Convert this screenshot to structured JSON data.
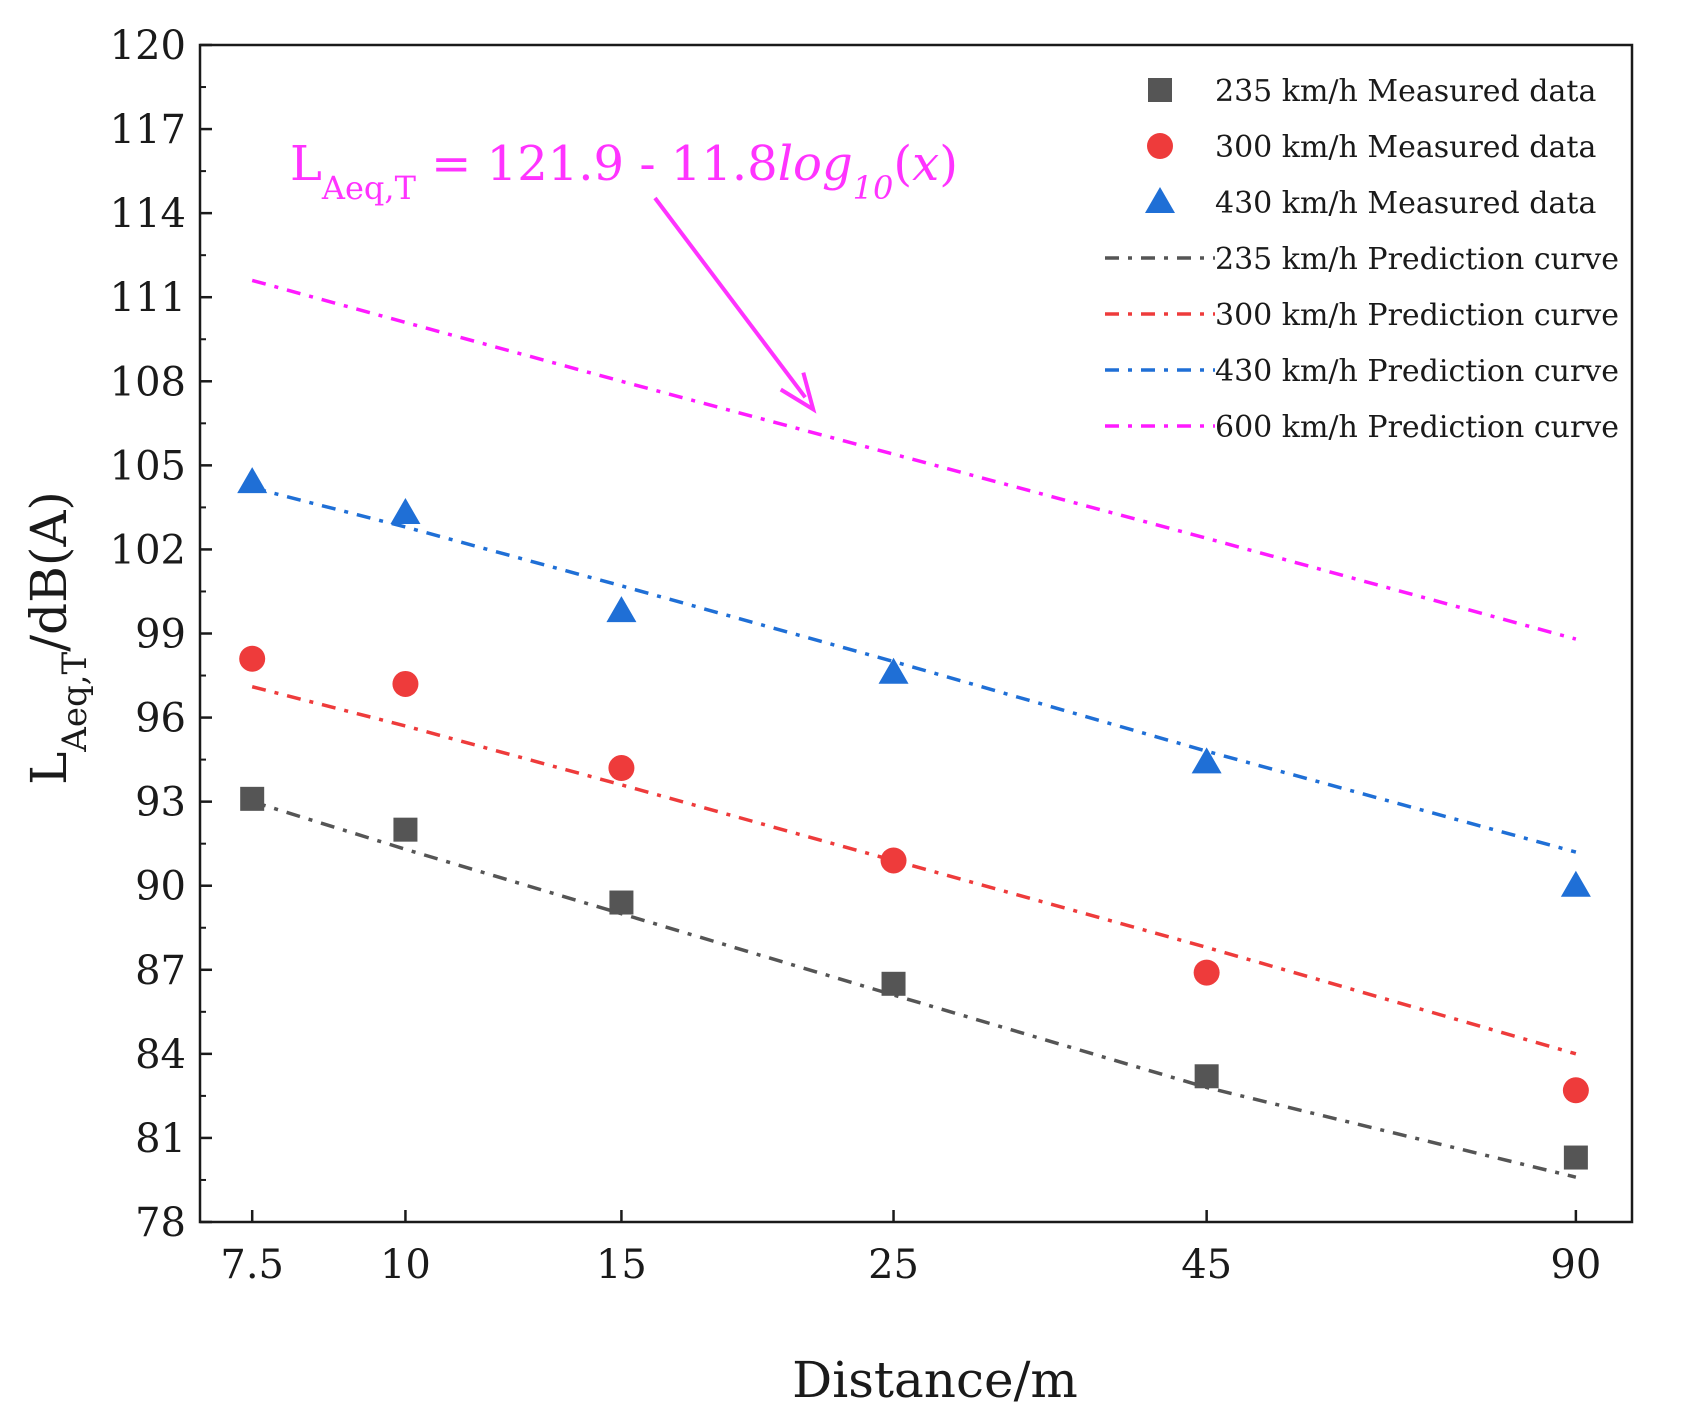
{
  "chart_data": {
    "type": "scatter",
    "title": "",
    "xlabel": "Distance/m",
    "ylabel": {
      "main": "L",
      "sub": "Aeq,T",
      "rest": "/dB(A)"
    },
    "x": [
      7.5,
      10,
      15,
      25,
      45,
      90
    ],
    "x_tick_labels": [
      "7.5",
      "10",
      "15",
      "25",
      "45",
      "90"
    ],
    "x_scale": "log",
    "xlim": [
      6.8,
      100
    ],
    "ylim": [
      78,
      120
    ],
    "y_ticks": [
      78,
      81,
      84,
      87,
      90,
      93,
      96,
      99,
      102,
      105,
      108,
      111,
      114,
      117,
      120
    ],
    "grid": false,
    "legend_position": "top-right",
    "series": [
      {
        "name": "235 km/h Measured data",
        "kind": "points",
        "marker": "square",
        "color": "#555555",
        "values": [
          93.1,
          92.0,
          89.4,
          86.5,
          83.2,
          80.3
        ]
      },
      {
        "name": "300 km/h Measured data",
        "kind": "points",
        "marker": "circle",
        "color": "#ee3b3b",
        "values": [
          98.1,
          97.2,
          94.2,
          90.9,
          86.9,
          82.7
        ]
      },
      {
        "name": "430 km/h Measured data",
        "kind": "points",
        "marker": "triangle",
        "color": "#1f6fd6",
        "values": [
          104.4,
          103.3,
          99.8,
          97.6,
          94.4,
          90.0
        ]
      },
      {
        "name": "235 km/h Prediction curve",
        "kind": "line",
        "color": "#555555",
        "values": [
          93.0,
          91.3,
          89.0,
          86.1,
          82.8,
          79.6
        ]
      },
      {
        "name": "300 km/h Prediction curve",
        "kind": "line",
        "color": "#ee3b3b",
        "values": [
          97.1,
          95.7,
          93.6,
          90.9,
          87.8,
          84.0
        ]
      },
      {
        "name": "430 km/h Prediction curve",
        "kind": "line",
        "color": "#1f6fd6",
        "values": [
          104.2,
          102.8,
          100.7,
          98.0,
          94.8,
          91.2
        ]
      },
      {
        "name": "600 km/h Prediction curve",
        "kind": "line",
        "color": "#ff1aff",
        "values": [
          111.6,
          110.1,
          108.0,
          105.4,
          102.4,
          98.8
        ]
      }
    ],
    "annotation": {
      "color": "#ff33ff",
      "parts": [
        {
          "text": "L",
          "style": "normal"
        },
        {
          "text": "Aeq,T",
          "style": "sub"
        },
        {
          "text": " = 121.9 - 11.8",
          "style": "normal"
        },
        {
          "text": "log",
          "style": "italic"
        },
        {
          "text": "10",
          "style": "italic-sub"
        },
        {
          "text": "(",
          "style": "normal"
        },
        {
          "text": "x",
          "style": "italic"
        },
        {
          "text": ")",
          "style": "normal"
        }
      ],
      "arrow_to": {
        "x": 21.5,
        "y": 107.0
      }
    }
  }
}
